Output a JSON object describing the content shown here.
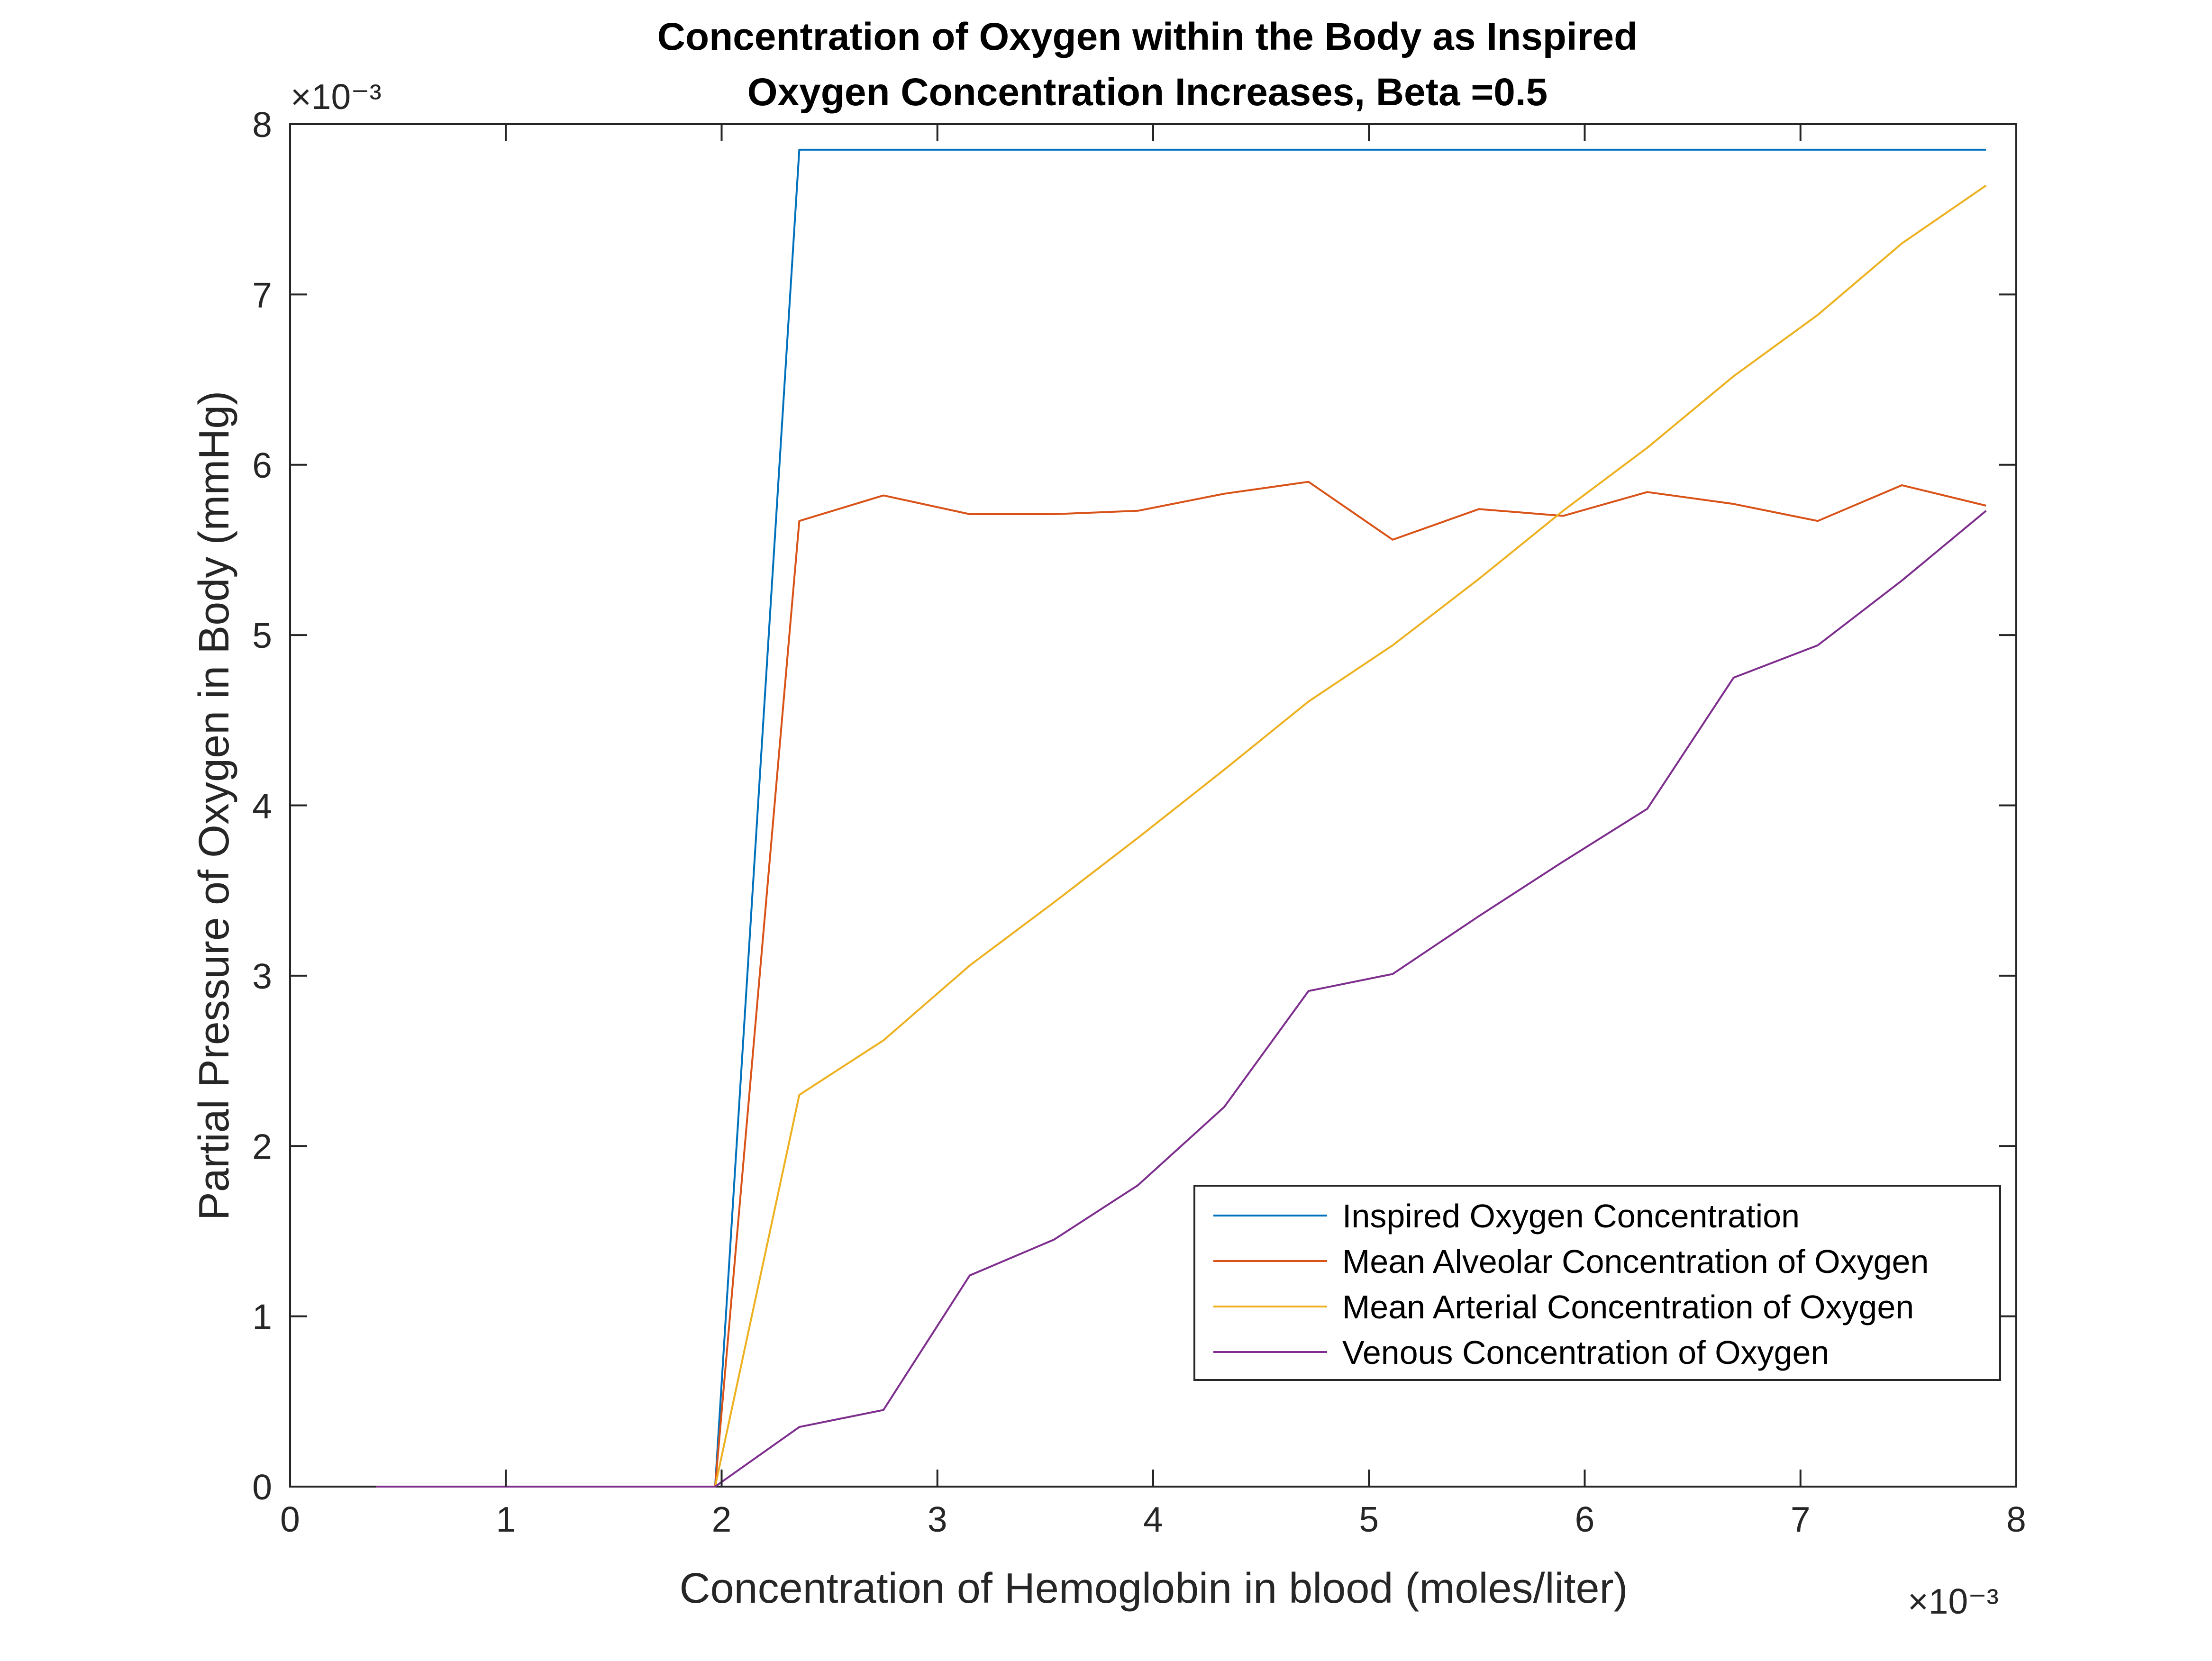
{
  "chart_data": {
    "type": "line",
    "title": [
      "Concentration of Oxygen within the Body as Inspired",
      "Oxygen Concentration Increases, Beta =0.5"
    ],
    "xlabel": "Concentration of Hemoglobin in blood (moles/liter)",
    "ylabel": "Partial Pressure of Oxygen in  Body (mmHg)",
    "x_exponent": "×10⁻³",
    "y_exponent": "×10⁻³",
    "xlim": [
      0,
      0.008
    ],
    "ylim": [
      0,
      0.008
    ],
    "xticks": [
      0,
      0.001,
      0.002,
      0.003,
      0.004,
      0.005,
      0.006,
      0.007,
      0.008
    ],
    "yticks": [
      0,
      0.001,
      0.002,
      0.003,
      0.004,
      0.005,
      0.006,
      0.007,
      0.008
    ],
    "xtick_labels": [
      "0",
      "1",
      "2",
      "3",
      "4",
      "5",
      "6",
      "7",
      "8"
    ],
    "ytick_labels": [
      "0",
      "1",
      "2",
      "3",
      "4",
      "5",
      "6",
      "7",
      "8"
    ],
    "grid": false,
    "box": true,
    "legend_position": "bottom-right",
    "series": [
      {
        "name": "Inspired Oxygen Concentration",
        "color": "#0072BD",
        "points": [
          [
            0.0004,
            0
          ],
          [
            0.0008,
            0
          ],
          [
            0.0012,
            0
          ],
          [
            0.0016,
            0
          ],
          [
            0.00197,
            0
          ],
          [
            0.00236,
            0.00785
          ],
          [
            0.00275,
            0.00785
          ],
          [
            0.00315,
            0.00785
          ],
          [
            0.00354,
            0.00785
          ],
          [
            0.00393,
            0.00785
          ],
          [
            0.00433,
            0.00785
          ],
          [
            0.00472,
            0.00785
          ],
          [
            0.00511,
            0.00785
          ],
          [
            0.00551,
            0.00785
          ],
          [
            0.0059,
            0.00785
          ],
          [
            0.00629,
            0.00785
          ],
          [
            0.00669,
            0.00785
          ],
          [
            0.00708,
            0.00785
          ],
          [
            0.00747,
            0.00785
          ],
          [
            0.00786,
            0.00785
          ]
        ]
      },
      {
        "name": "Mean Alveolar Concentration of Oxygen",
        "color": "#D95319",
        "points": [
          [
            0.0004,
            0
          ],
          [
            0.0008,
            0
          ],
          [
            0.0012,
            0
          ],
          [
            0.0016,
            0
          ],
          [
            0.00197,
            0
          ],
          [
            0.00236,
            0.00567
          ],
          [
            0.00275,
            0.00582
          ],
          [
            0.00315,
            0.00571
          ],
          [
            0.00354,
            0.00571
          ],
          [
            0.00393,
            0.00573
          ],
          [
            0.00433,
            0.00583
          ],
          [
            0.00472,
            0.0059
          ],
          [
            0.00511,
            0.00556
          ],
          [
            0.00551,
            0.00574
          ],
          [
            0.0059,
            0.0057
          ],
          [
            0.00629,
            0.00584
          ],
          [
            0.00669,
            0.00577
          ],
          [
            0.00708,
            0.00567
          ],
          [
            0.00747,
            0.00588
          ],
          [
            0.00786,
            0.00576
          ]
        ]
      },
      {
        "name": "Mean Arterial Concentration of Oxygen",
        "color": "#EDB120",
        "points": [
          [
            0.0004,
            0
          ],
          [
            0.0008,
            0
          ],
          [
            0.0012,
            0
          ],
          [
            0.0016,
            0
          ],
          [
            0.00197,
            0
          ],
          [
            0.00236,
            0.0023
          ],
          [
            0.00275,
            0.00262
          ],
          [
            0.00315,
            0.00306
          ],
          [
            0.00354,
            0.00343
          ],
          [
            0.00393,
            0.00381
          ],
          [
            0.00433,
            0.00421
          ],
          [
            0.00472,
            0.00461
          ],
          [
            0.00511,
            0.00494
          ],
          [
            0.00551,
            0.00533
          ],
          [
            0.0059,
            0.00573
          ],
          [
            0.00629,
            0.0061
          ],
          [
            0.00669,
            0.00652
          ],
          [
            0.00708,
            0.00688
          ],
          [
            0.00747,
            0.0073
          ],
          [
            0.00786,
            0.00764
          ]
        ]
      },
      {
        "name": "Venous Concentration of Oxygen",
        "color": "#7E2F8E",
        "points": [
          [
            0.0004,
            0
          ],
          [
            0.0008,
            0
          ],
          [
            0.0012,
            0
          ],
          [
            0.0016,
            0
          ],
          [
            0.00197,
            0
          ],
          [
            0.00236,
            0.00035
          ],
          [
            0.00275,
            0.00045
          ],
          [
            0.00315,
            0.00124
          ],
          [
            0.00354,
            0.00145
          ],
          [
            0.00393,
            0.00177
          ],
          [
            0.00433,
            0.00223
          ],
          [
            0.00472,
            0.00291
          ],
          [
            0.00511,
            0.00301
          ],
          [
            0.00551,
            0.00335
          ],
          [
            0.0059,
            0.00367
          ],
          [
            0.00629,
            0.00398
          ],
          [
            0.00669,
            0.00475
          ],
          [
            0.00708,
            0.00494
          ],
          [
            0.00747,
            0.00532
          ],
          [
            0.00786,
            0.00573
          ]
        ]
      }
    ]
  }
}
